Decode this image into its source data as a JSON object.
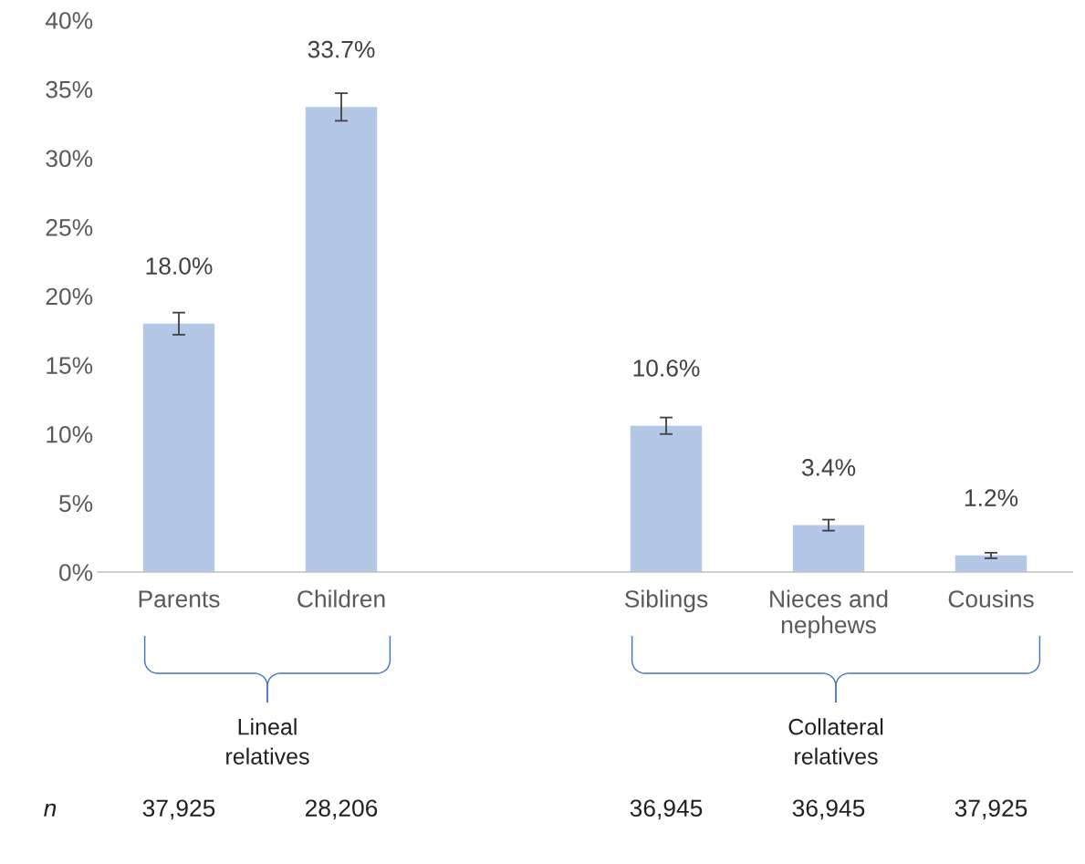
{
  "chart_data": {
    "type": "bar",
    "categories": [
      "Parents",
      "Children",
      null,
      "Siblings",
      "Nieces and\nnephews",
      "Cousins"
    ],
    "values": [
      18.0,
      33.7,
      null,
      10.6,
      3.4,
      1.2
    ],
    "errors": [
      0.8,
      1.0,
      null,
      0.6,
      0.4,
      0.2
    ],
    "value_labels": [
      "18.0%",
      "33.7%",
      null,
      "10.6%",
      "3.4%",
      "1.2%"
    ],
    "color": "#b4c7e7",
    "ylim": [
      0,
      40
    ],
    "yticks": [
      {
        "value": 0,
        "label": "0%"
      },
      {
        "value": 5,
        "label": "5%"
      },
      {
        "value": 10,
        "label": "10%"
      },
      {
        "value": 15,
        "label": "15%"
      },
      {
        "value": 20,
        "label": "20%"
      },
      {
        "value": 25,
        "label": "25%"
      },
      {
        "value": 30,
        "label": "30%"
      },
      {
        "value": 35,
        "label": "35%"
      },
      {
        "value": 40,
        "label": "40%"
      }
    ],
    "grid": false,
    "annotations": [
      "Lineal\nrelatives",
      "Collateral\nrelatives",
      "n",
      "37,925",
      "28,206",
      "36,945",
      "36,945",
      "37,925"
    ]
  }
}
